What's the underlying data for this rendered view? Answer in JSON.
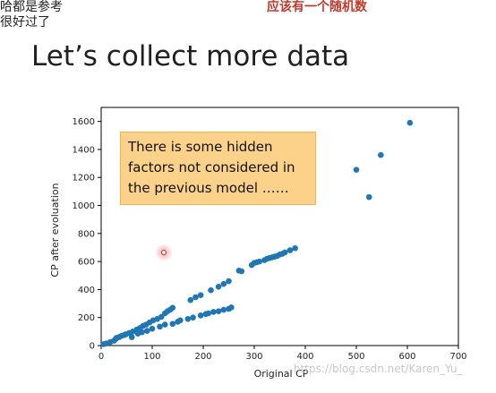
{
  "overlay_text": {
    "left_line1": "哈都是参考",
    "left_line2": "很好过了",
    "right_note": "应该有一个随机数"
  },
  "slide": {
    "title": "Let’s collect more data"
  },
  "callout": {
    "line1": "There is some hidden",
    "line2": "factors not considered in",
    "line3": "the previous model ……"
  },
  "watermark": {
    "text": "https://blog.csdn.net/Karen_Yu_"
  },
  "colors": {
    "point": "#1f77b4",
    "callout_bg": "#fcd28a",
    "overlay_red": "#c0392b",
    "cursor": "#d62020"
  },
  "chart_data": {
    "type": "scatter",
    "xlabel": "Original CP",
    "ylabel": "CP after evoluation",
    "xlim": [
      0,
      700
    ],
    "ylim": [
      0,
      1700
    ],
    "xticks": [
      0,
      100,
      200,
      300,
      400,
      500,
      600,
      700
    ],
    "yticks": [
      0,
      200,
      400,
      600,
      800,
      1000,
      1200,
      1400,
      1600
    ],
    "grid": false,
    "series": [
      {
        "points": [
          [
            5,
            10
          ],
          [
            10,
            15
          ],
          [
            18,
            25
          ],
          [
            25,
            35
          ],
          [
            28,
            45
          ],
          [
            35,
            60
          ],
          [
            40,
            70
          ],
          [
            48,
            80
          ],
          [
            55,
            90
          ],
          [
            62,
            100
          ],
          [
            70,
            115
          ],
          [
            76,
            125
          ],
          [
            82,
            140
          ],
          [
            88,
            150
          ],
          [
            95,
            165
          ],
          [
            102,
            180
          ],
          [
            110,
            190
          ],
          [
            118,
            205
          ],
          [
            125,
            230
          ],
          [
            130,
            245
          ],
          [
            135,
            255
          ],
          [
            140,
            270
          ],
          [
            30,
            55
          ],
          [
            45,
            75
          ],
          [
            60,
            60
          ],
          [
            72,
            85
          ],
          [
            80,
            95
          ],
          [
            90,
            105
          ],
          [
            100,
            120
          ],
          [
            115,
            135
          ],
          [
            125,
            150
          ],
          [
            140,
            155
          ],
          [
            150,
            170
          ],
          [
            155,
            180
          ],
          [
            170,
            190
          ],
          [
            180,
            200
          ],
          [
            195,
            215
          ],
          [
            205,
            225
          ],
          [
            210,
            230
          ],
          [
            220,
            240
          ],
          [
            230,
            245
          ],
          [
            240,
            255
          ],
          [
            250,
            262
          ],
          [
            255,
            272
          ],
          [
            175,
            325
          ],
          [
            185,
            345
          ],
          [
            195,
            360
          ],
          [
            215,
            395
          ],
          [
            230,
            420
          ],
          [
            240,
            440
          ],
          [
            250,
            460
          ],
          [
            275,
            530
          ],
          [
            295,
            575
          ],
          [
            305,
            595
          ],
          [
            320,
            610
          ],
          [
            330,
            625
          ],
          [
            340,
            635
          ],
          [
            350,
            650
          ],
          [
            360,
            665
          ],
          [
            370,
            680
          ],
          [
            380,
            695
          ],
          [
            270,
            535
          ],
          [
            300,
            590
          ],
          [
            310,
            600
          ],
          [
            325,
            620
          ],
          [
            335,
            630
          ],
          [
            345,
            640
          ],
          [
            355,
            655
          ],
          [
            500,
            1255
          ],
          [
            525,
            1060
          ],
          [
            548,
            1360
          ],
          [
            605,
            1590
          ]
        ]
      }
    ]
  }
}
